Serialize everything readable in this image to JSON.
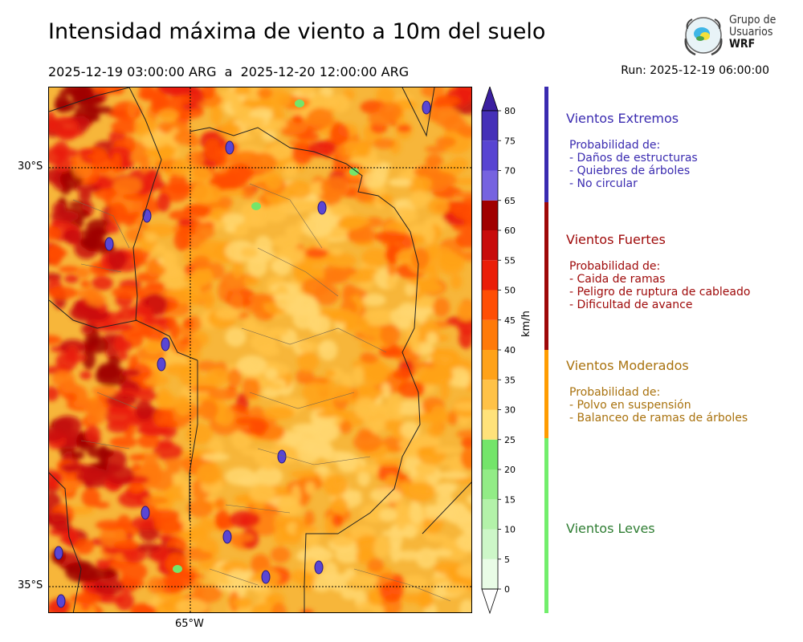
{
  "header": {
    "title": "Intensidad máxima de viento a 10m del suelo",
    "date_range": "2025-12-19 03:00:00 ARG  a  2025-12-20 12:00:00 ARG",
    "run": "Run: 2025-12-19 06:00:00"
  },
  "logo": {
    "line1": "Grupo de",
    "line2": "Usuarios",
    "line3": "WRF",
    "icon": "globe-laurel-icon"
  },
  "map": {
    "lat_labels": [
      "30°S",
      "35°S"
    ],
    "lon_labels": [
      "65°W"
    ]
  },
  "colorbar": {
    "unit": "km/h",
    "ticks": [
      "0",
      "5",
      "10",
      "15",
      "20",
      "25",
      "30",
      "35",
      "40",
      "45",
      "50",
      "55",
      "60",
      "65",
      "70",
      "75",
      "80"
    ],
    "colors": [
      "#e9fce6",
      "#cdf7c8",
      "#b3f2a9",
      "#92ec86",
      "#74e56a",
      "#ffe27a",
      "#ffc247",
      "#ffa219",
      "#ff7a09",
      "#ff4e05",
      "#ea1e08",
      "#c80c0c",
      "#a00000",
      "#7663e0",
      "#5844d2",
      "#4530b8",
      "#3b1fa0"
    ],
    "max_color": "#3b1fa0",
    "min_color": "#ffffff"
  },
  "categories": [
    {
      "title": "Vientos Extremos",
      "color": "#3a2bb0",
      "lines": [
        "Probabilidad de:",
        "- Daños de estructuras",
        "- Quiebres de árboles",
        "- No circular"
      ]
    },
    {
      "title": "Vientos Fuertes",
      "color": "#9e0808",
      "lines": [
        "Probabilidad de:",
        "- Caida de ramas",
        "- Peligro de ruptura de cableado",
        "- Dificultad de avance"
      ]
    },
    {
      "title": "Vientos Moderados",
      "color": "#a9720e",
      "bar_color": "#ff9c00",
      "lines": [
        "Probabilidad de:",
        "- Polvo en suspensión",
        "- Balanceo de ramas de árboles"
      ]
    },
    {
      "title": "Vientos Leves",
      "color": "#2e7d32",
      "bar_color": "#72ee6c",
      "lines": []
    }
  ]
}
